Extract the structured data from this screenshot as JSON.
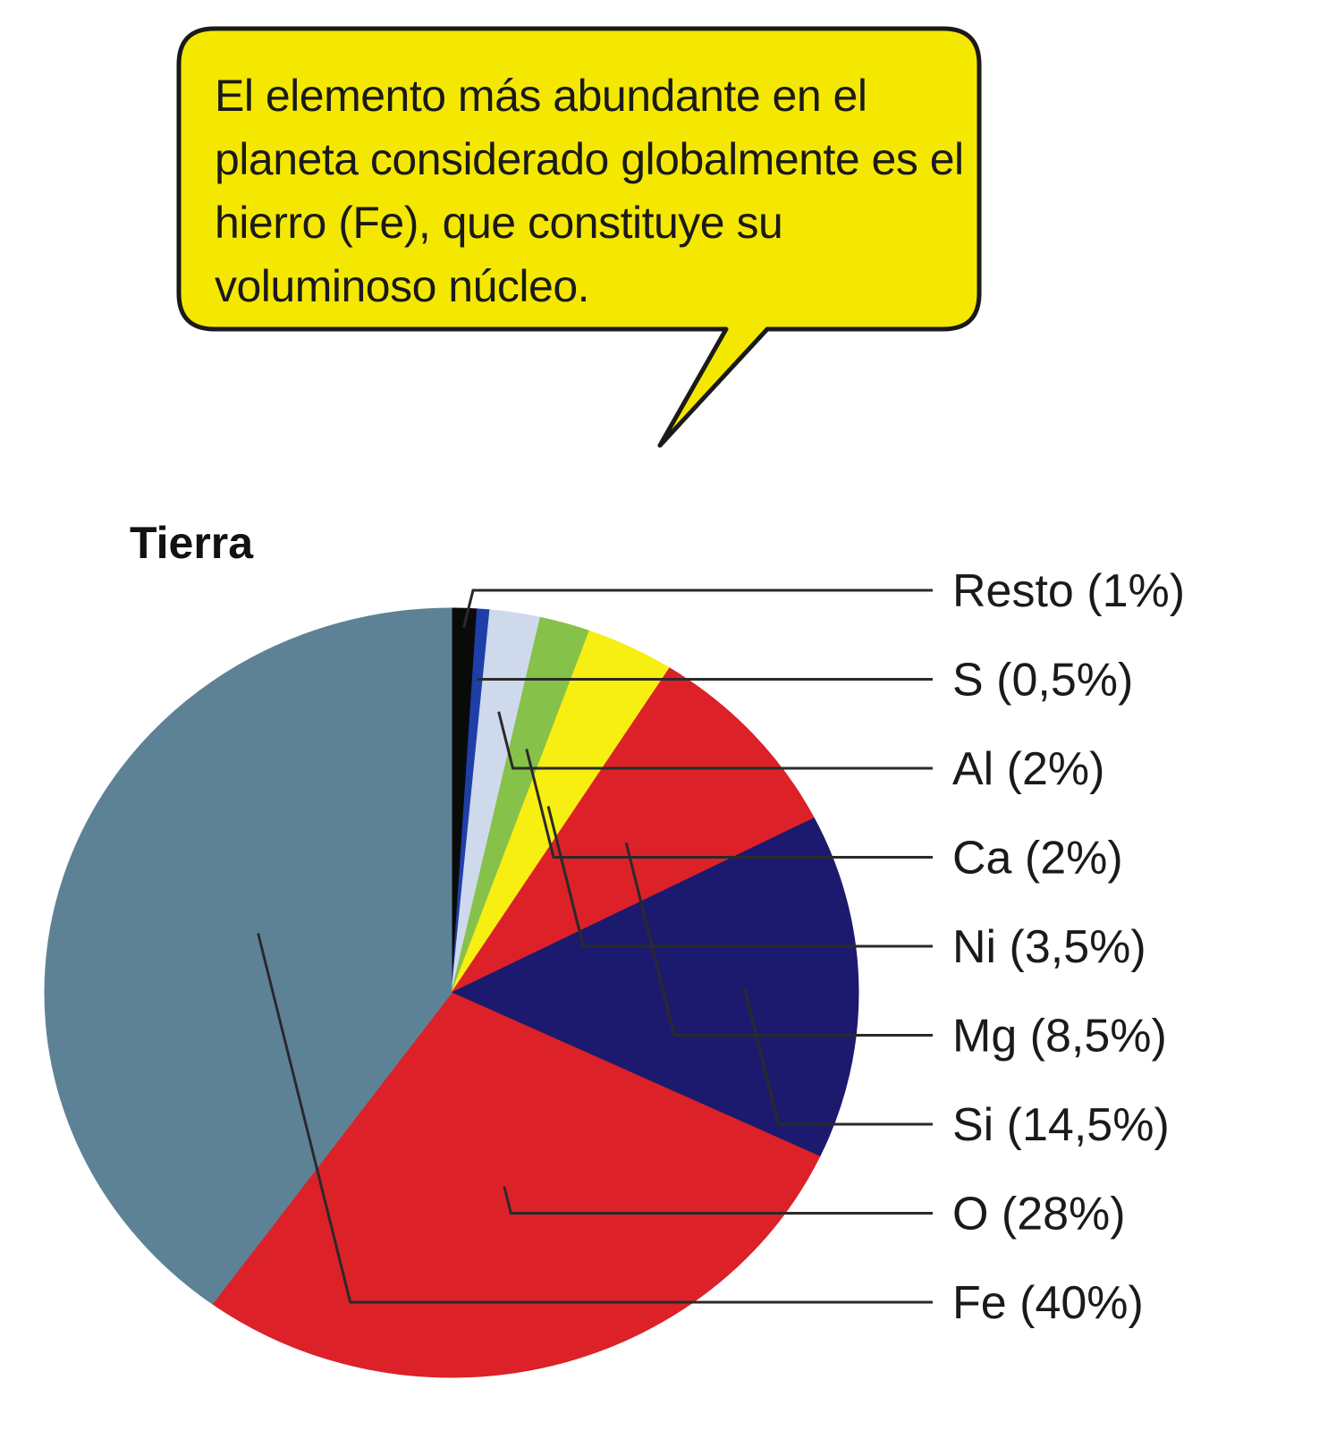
{
  "callout": {
    "text": "El elemento más abundante en el planeta considerado globalmente es el hierro (Fe), que constituye su voluminoso núcleo.",
    "fill_color": "#f5e800",
    "border_color": "#1a1a1a"
  },
  "chart_data": {
    "type": "pie",
    "title": "Tierra",
    "slices": [
      {
        "label": "Resto (1%)",
        "name": "Resto",
        "value": 1,
        "color": "#0a0a0a"
      },
      {
        "label": "S (0,5%)",
        "name": "S",
        "value": 0.5,
        "color": "#1f3fa8"
      },
      {
        "label": "Al (2%)",
        "name": "Al",
        "value": 2,
        "color": "#cfd9ec"
      },
      {
        "label": "Ca (2%)",
        "name": "Ca",
        "value": 2,
        "color": "#86c14a"
      },
      {
        "label": "Ni (3,5%)",
        "name": "Ni",
        "value": 3.5,
        "color": "#f7ee12"
      },
      {
        "label": "Mg (8,5%)",
        "name": "Mg",
        "value": 8.5,
        "color": "#dc2128"
      },
      {
        "label": "Si (14,5%)",
        "name": "Si",
        "value": 14.5,
        "color": "#1c1a6e"
      },
      {
        "label": "O (28%)",
        "name": "O",
        "value": 28,
        "color": "#dc2128"
      },
      {
        "label": "Fe (40%)",
        "name": "Fe",
        "value": 40,
        "color": "#5d8296"
      }
    ],
    "legend_position": "right"
  }
}
